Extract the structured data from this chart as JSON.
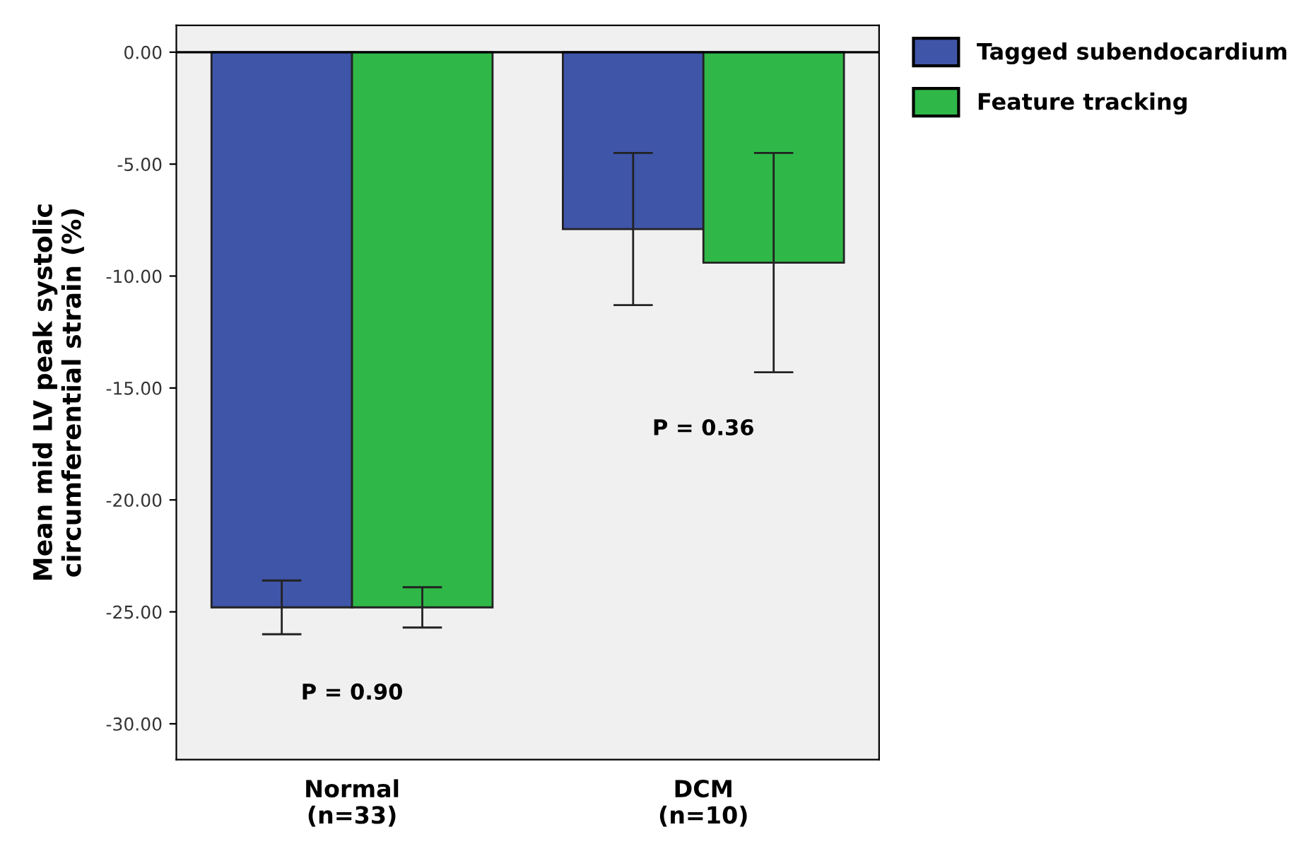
{
  "chart_data": {
    "type": "bar",
    "ylabel": "Mean mid LV peak systolic\ncircumferential strain (%)",
    "categories": [
      "Normal\n(n=33)",
      "DCM\n(n=10)"
    ],
    "series": [
      {
        "name": "Tagged subendocardium",
        "color": "#3f55a8",
        "values": [
          -24.8,
          -7.9
        ],
        "errors": [
          1.2,
          3.4
        ]
      },
      {
        "name": "Feature tracking",
        "color": "#2fb848",
        "values": [
          -24.8,
          -9.4
        ],
        "errors": [
          0.9,
          4.9
        ]
      }
    ],
    "ylim": [
      -31.6,
      1.2
    ],
    "yticks": [
      {
        "value": 0,
        "label": "0.00"
      },
      {
        "value": -5,
        "label": "-5.00"
      },
      {
        "value": -10,
        "label": "-10.00"
      },
      {
        "value": -15,
        "label": "-15.00"
      },
      {
        "value": -20,
        "label": "-20.00"
      },
      {
        "value": -25,
        "label": "-25.00"
      },
      {
        "value": -30,
        "label": "-30.00"
      }
    ],
    "ref_lines": [
      {
        "axis": "y",
        "value": 0,
        "label": null,
        "color": "#000000"
      }
    ],
    "annotations": [
      "P = 0.90",
      "P = 0.36"
    ],
    "grid": false,
    "legend": "top right"
  }
}
